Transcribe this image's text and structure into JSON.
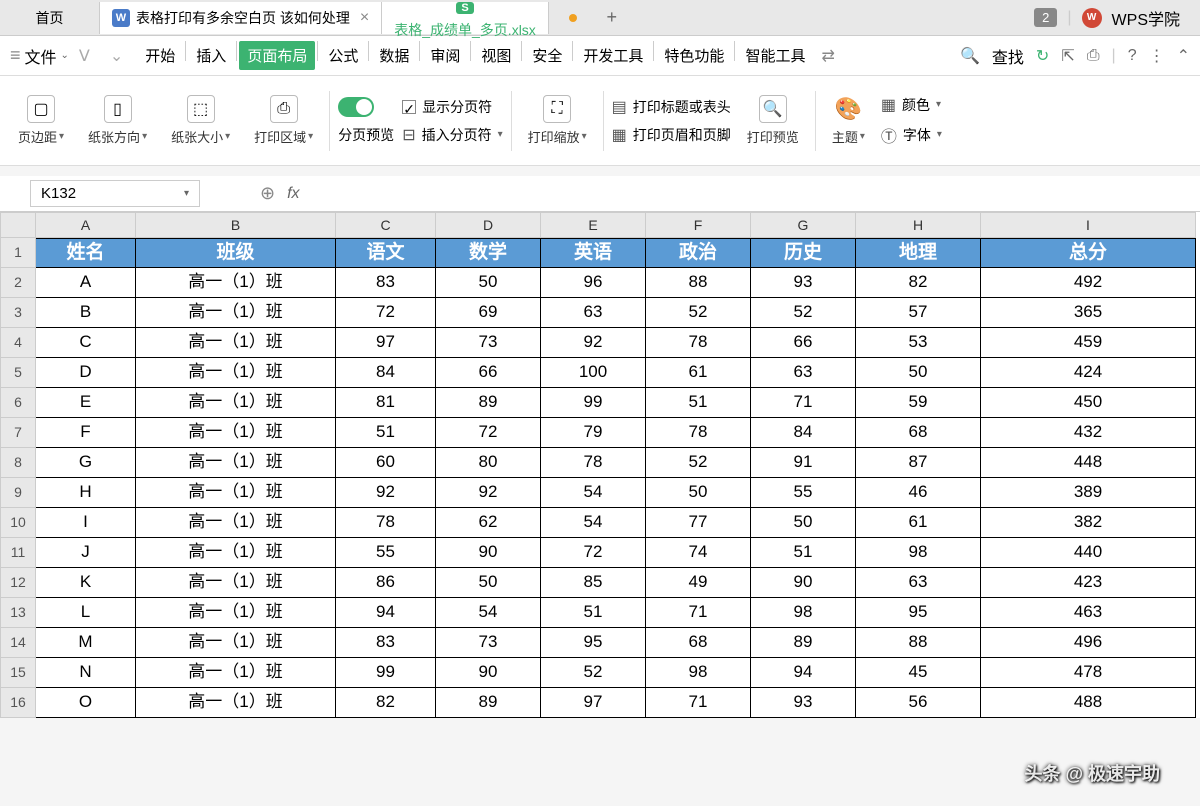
{
  "tabs": {
    "home": "首页",
    "doc_title": "表格打印有多余空白页 该如何处理",
    "sheet_title": "表格_成绩单_多页.xlsx",
    "badge": "2",
    "wps_academy": "WPS学院"
  },
  "menu": {
    "file": "文件",
    "items": [
      "开始",
      "插入",
      "页面布局",
      "公式",
      "数据",
      "审阅",
      "视图",
      "安全",
      "开发工具",
      "特色功能",
      "智能工具"
    ],
    "active_index": 2,
    "search": "查找"
  },
  "ribbon": {
    "margin": "页边距",
    "orientation": "纸张方向",
    "size": "纸张大小",
    "print_area": "打印区域",
    "page_break_preview": "分页预览",
    "show_breaks": "显示分页符",
    "insert_break": "插入分页符",
    "print_scale": "打印缩放",
    "print_titles": "打印标题或表头",
    "header_footer": "打印页眉和页脚",
    "print_preview": "打印预览",
    "theme": "主题",
    "colors": "颜色",
    "fonts": "字体"
  },
  "cell_ref": "K132",
  "columns": [
    "A",
    "B",
    "C",
    "D",
    "E",
    "F",
    "G",
    "H",
    "I"
  ],
  "headers": [
    "姓名",
    "班级",
    "语文",
    "数学",
    "英语",
    "政治",
    "历史",
    "地理",
    "总分"
  ],
  "class_name": "高一（1）班",
  "rows": [
    {
      "n": "A",
      "v": [
        83,
        50,
        96,
        88,
        93,
        82,
        492
      ]
    },
    {
      "n": "B",
      "v": [
        72,
        69,
        63,
        52,
        52,
        57,
        365
      ]
    },
    {
      "n": "C",
      "v": [
        97,
        73,
        92,
        78,
        66,
        53,
        459
      ]
    },
    {
      "n": "D",
      "v": [
        84,
        66,
        100,
        61,
        63,
        50,
        424
      ]
    },
    {
      "n": "E",
      "v": [
        81,
        89,
        99,
        51,
        71,
        59,
        450
      ]
    },
    {
      "n": "F",
      "v": [
        51,
        72,
        79,
        78,
        84,
        68,
        432
      ]
    },
    {
      "n": "G",
      "v": [
        60,
        80,
        78,
        52,
        91,
        87,
        448
      ]
    },
    {
      "n": "H",
      "v": [
        92,
        92,
        54,
        50,
        55,
        46,
        389
      ]
    },
    {
      "n": "I",
      "v": [
        78,
        62,
        54,
        77,
        50,
        61,
        382
      ]
    },
    {
      "n": "J",
      "v": [
        55,
        90,
        72,
        74,
        51,
        98,
        440
      ]
    },
    {
      "n": "K",
      "v": [
        86,
        50,
        85,
        49,
        90,
        63,
        423
      ]
    },
    {
      "n": "L",
      "v": [
        94,
        54,
        51,
        71,
        98,
        95,
        463
      ]
    },
    {
      "n": "M",
      "v": [
        83,
        73,
        95,
        68,
        89,
        88,
        496
      ]
    },
    {
      "n": "N",
      "v": [
        99,
        90,
        52,
        98,
        94,
        45,
        478
      ]
    },
    {
      "n": "O",
      "v": [
        82,
        89,
        97,
        71,
        93,
        56,
        488
      ]
    }
  ],
  "watermark": "头条 @ 极速宇助",
  "colors": {
    "header_bg": "#5b9bd5",
    "active_menu": "#3cb371"
  }
}
